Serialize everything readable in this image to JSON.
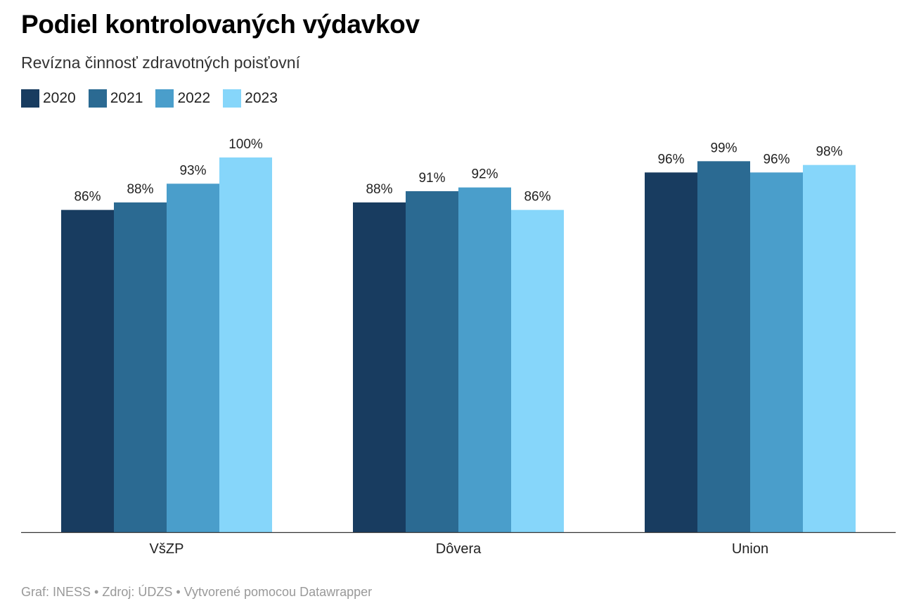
{
  "header": {
    "title": "Podiel kontrolovaných výdavkov",
    "subtitle": "Revízna činnosť zdravotných poisťovní"
  },
  "legend": [
    {
      "label": "2020",
      "color": "#183c60"
    },
    {
      "label": "2021",
      "color": "#2b6a92"
    },
    {
      "label": "2022",
      "color": "#4a9ecb"
    },
    {
      "label": "2023",
      "color": "#86d6fa"
    }
  ],
  "chart_data": {
    "type": "bar",
    "categories": [
      "VšZP",
      "Dôvera",
      "Union"
    ],
    "series": [
      {
        "name": "2020",
        "values": [
          86,
          88,
          96
        ],
        "labels": [
          "86%",
          "88%",
          "96%"
        ],
        "color": "#183c60"
      },
      {
        "name": "2021",
        "values": [
          88,
          91,
          99
        ],
        "labels": [
          "88%",
          "91%",
          "99%"
        ],
        "color": "#2b6a92"
      },
      {
        "name": "2022",
        "values": [
          93,
          92,
          96
        ],
        "labels": [
          "93%",
          "92%",
          "96%"
        ],
        "color": "#4a9ecb"
      },
      {
        "name": "2023",
        "values": [
          100,
          86,
          98
        ],
        "labels": [
          "100%",
          "86%",
          "98%"
        ],
        "color": "#86d6fa"
      }
    ],
    "ylim": [
      0,
      100
    ],
    "grid": false,
    "legend_position": "top-left"
  },
  "footer": {
    "text": "Graf: INESS • Zdroj: ÚDZS • Vytvorené pomocou Datawrapper"
  }
}
